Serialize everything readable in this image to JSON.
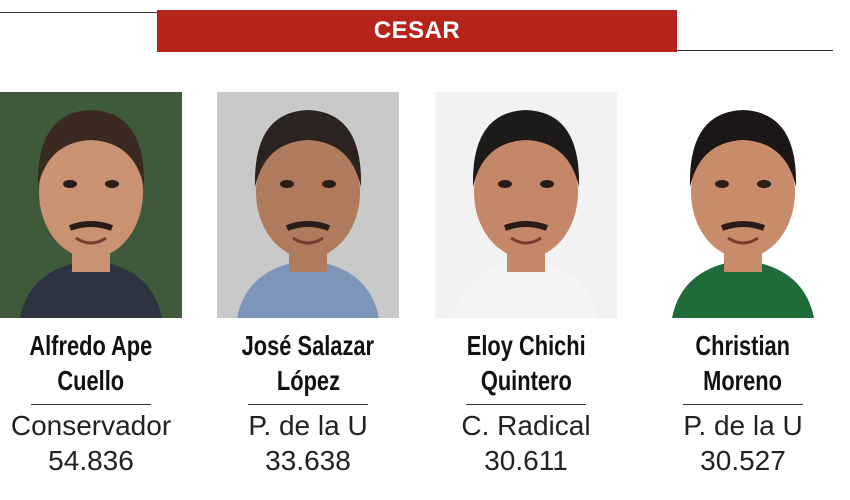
{
  "header": {
    "title": "CESAR"
  },
  "candidates": [
    {
      "name_lines": [
        "Alfredo Ape",
        "Cuello"
      ],
      "party": "Conservador",
      "votes": "54.836"
    },
    {
      "name_lines": [
        "José Salazar",
        "López"
      ],
      "party": "P. de la U",
      "votes": "33.638"
    },
    {
      "name_lines": [
        "Eloy Chichi",
        "Quintero"
      ],
      "party": "C. Radical",
      "votes": "30.611"
    },
    {
      "name_lines": [
        "Christian",
        "Moreno"
      ],
      "party": "P. de la U",
      "votes": "30.527"
    }
  ]
}
